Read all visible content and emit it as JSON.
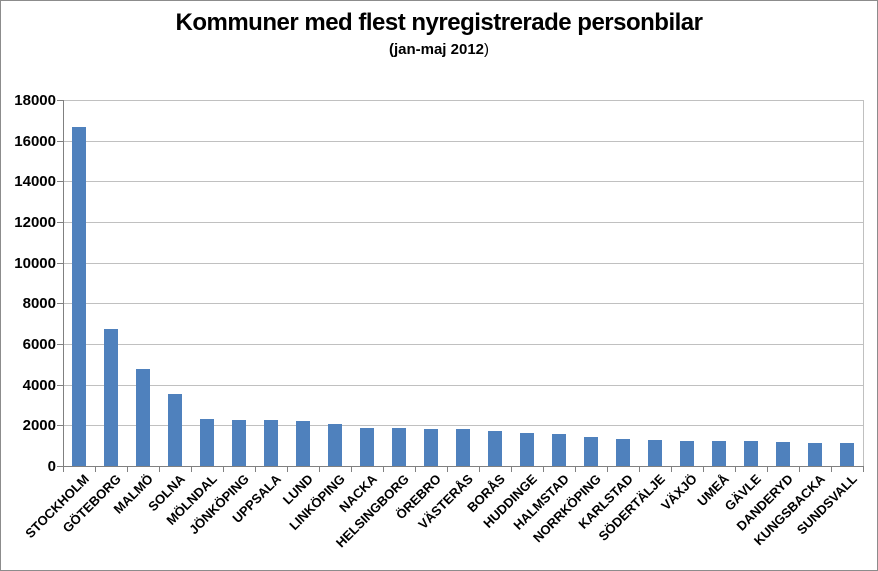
{
  "chart_data": {
    "type": "bar",
    "title": "Kommuner med flest nyregistrerade personbilar",
    "subtitle_main": "(jan-maj 2012",
    "subtitle_close": ")",
    "categories": [
      "STOCKHOLM",
      "GÖTEBORG",
      "MALMÖ",
      "SOLNA",
      "MÖLNDAL",
      "JÖNKÖPING",
      "UPPSALA",
      "LUND",
      "LINKÖPING",
      "NACKA",
      "HELSINGBORG",
      "ÖREBRO",
      "VÄSTERÅS",
      "BORÅS",
      "HUDDINGE",
      "HALMSTAD",
      "NORRKÖPING",
      "KARLSTAD",
      "SÖDERTÄLJE",
      "VÄXJÖ",
      "UMEÅ",
      "GÄVLE",
      "DANDERYD",
      "KUNGSBACKA",
      "SUNDSVALL"
    ],
    "values": [
      16650,
      6750,
      4750,
      3550,
      2300,
      2280,
      2270,
      2190,
      2060,
      1890,
      1860,
      1840,
      1800,
      1730,
      1620,
      1560,
      1430,
      1310,
      1270,
      1250,
      1230,
      1210,
      1180,
      1150,
      1120
    ],
    "xlabel": "",
    "ylabel": "",
    "ylim": [
      0,
      18000
    ],
    "ytick_step": 2000,
    "ytick_labels": [
      "0",
      "2000",
      "4000",
      "6000",
      "8000",
      "10000",
      "12000",
      "14000",
      "16000",
      "18000"
    ],
    "grid": true,
    "legend_position": "none",
    "bar_color": "#4f81bd",
    "gridline_color": "#c0c0c0",
    "axis_color": "#808080",
    "text_color": "#000000",
    "background_color": "#ffffff"
  }
}
